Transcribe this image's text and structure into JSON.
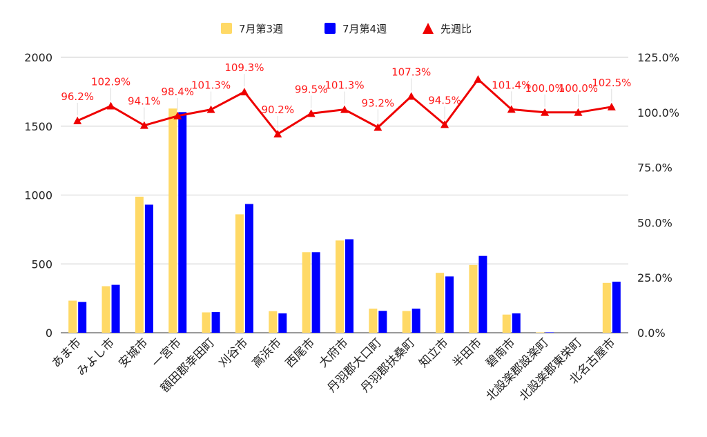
{
  "chart_data": {
    "type": "bar+line",
    "legend_position": "top",
    "grid": true,
    "categories": [
      "あま市",
      "みよし市",
      "安城市",
      "一宮市",
      "額田郡幸田町",
      "刈谷市",
      "高浜市",
      "西尾市",
      "大府市",
      "丹羽郡大口町",
      "丹羽郡扶桑町",
      "知立市",
      "半田市",
      "碧南市",
      "北設楽郡設楽町",
      "北設楽郡東栄町",
      "北名古屋市"
    ],
    "series": [
      {
        "name": "7月第3週",
        "type": "bar",
        "axis": "left",
        "color": "#ffd966",
        "values": [
          233,
          338,
          988,
          1628,
          148,
          860,
          157,
          585,
          670,
          175,
          158,
          435,
          492,
          132,
          3,
          0,
          362
        ]
      },
      {
        "name": "7月第4週",
        "type": "bar",
        "axis": "left",
        "color": "#0000ff",
        "values": [
          224,
          348,
          930,
          1602,
          150,
          935,
          141,
          585,
          679,
          159,
          175,
          409,
          558,
          141,
          3,
          0,
          371
        ]
      },
      {
        "name": "先週比",
        "type": "line",
        "axis": "right",
        "color": "#ee0000",
        "values": [
          96.2,
          102.9,
          94.1,
          98.4,
          101.3,
          109.3,
          90.2,
          99.5,
          101.3,
          93.2,
          107.3,
          94.5,
          115.0,
          101.4,
          100.0,
          100.0,
          102.5
        ],
        "labels": [
          "96.2%",
          "102.9%",
          "94.1%",
          "98.4%",
          "101.3%",
          "109.3%",
          "90.2%",
          "99.5%",
          "101.3%",
          "93.2%",
          "107.3%",
          "94.5%",
          "",
          "101.4%",
          "100.0%",
          "100.0%",
          "102.5%"
        ]
      }
    ],
    "left_axis": {
      "min": 0,
      "max": 2000,
      "ticks": [
        "0",
        "500",
        "1000",
        "1500",
        "2000"
      ]
    },
    "right_axis": {
      "min": 0,
      "max": 125,
      "ticks": [
        "0.0%",
        "25.0%",
        "50.0%",
        "75.0%",
        "100.0%",
        "125.0%"
      ]
    }
  }
}
